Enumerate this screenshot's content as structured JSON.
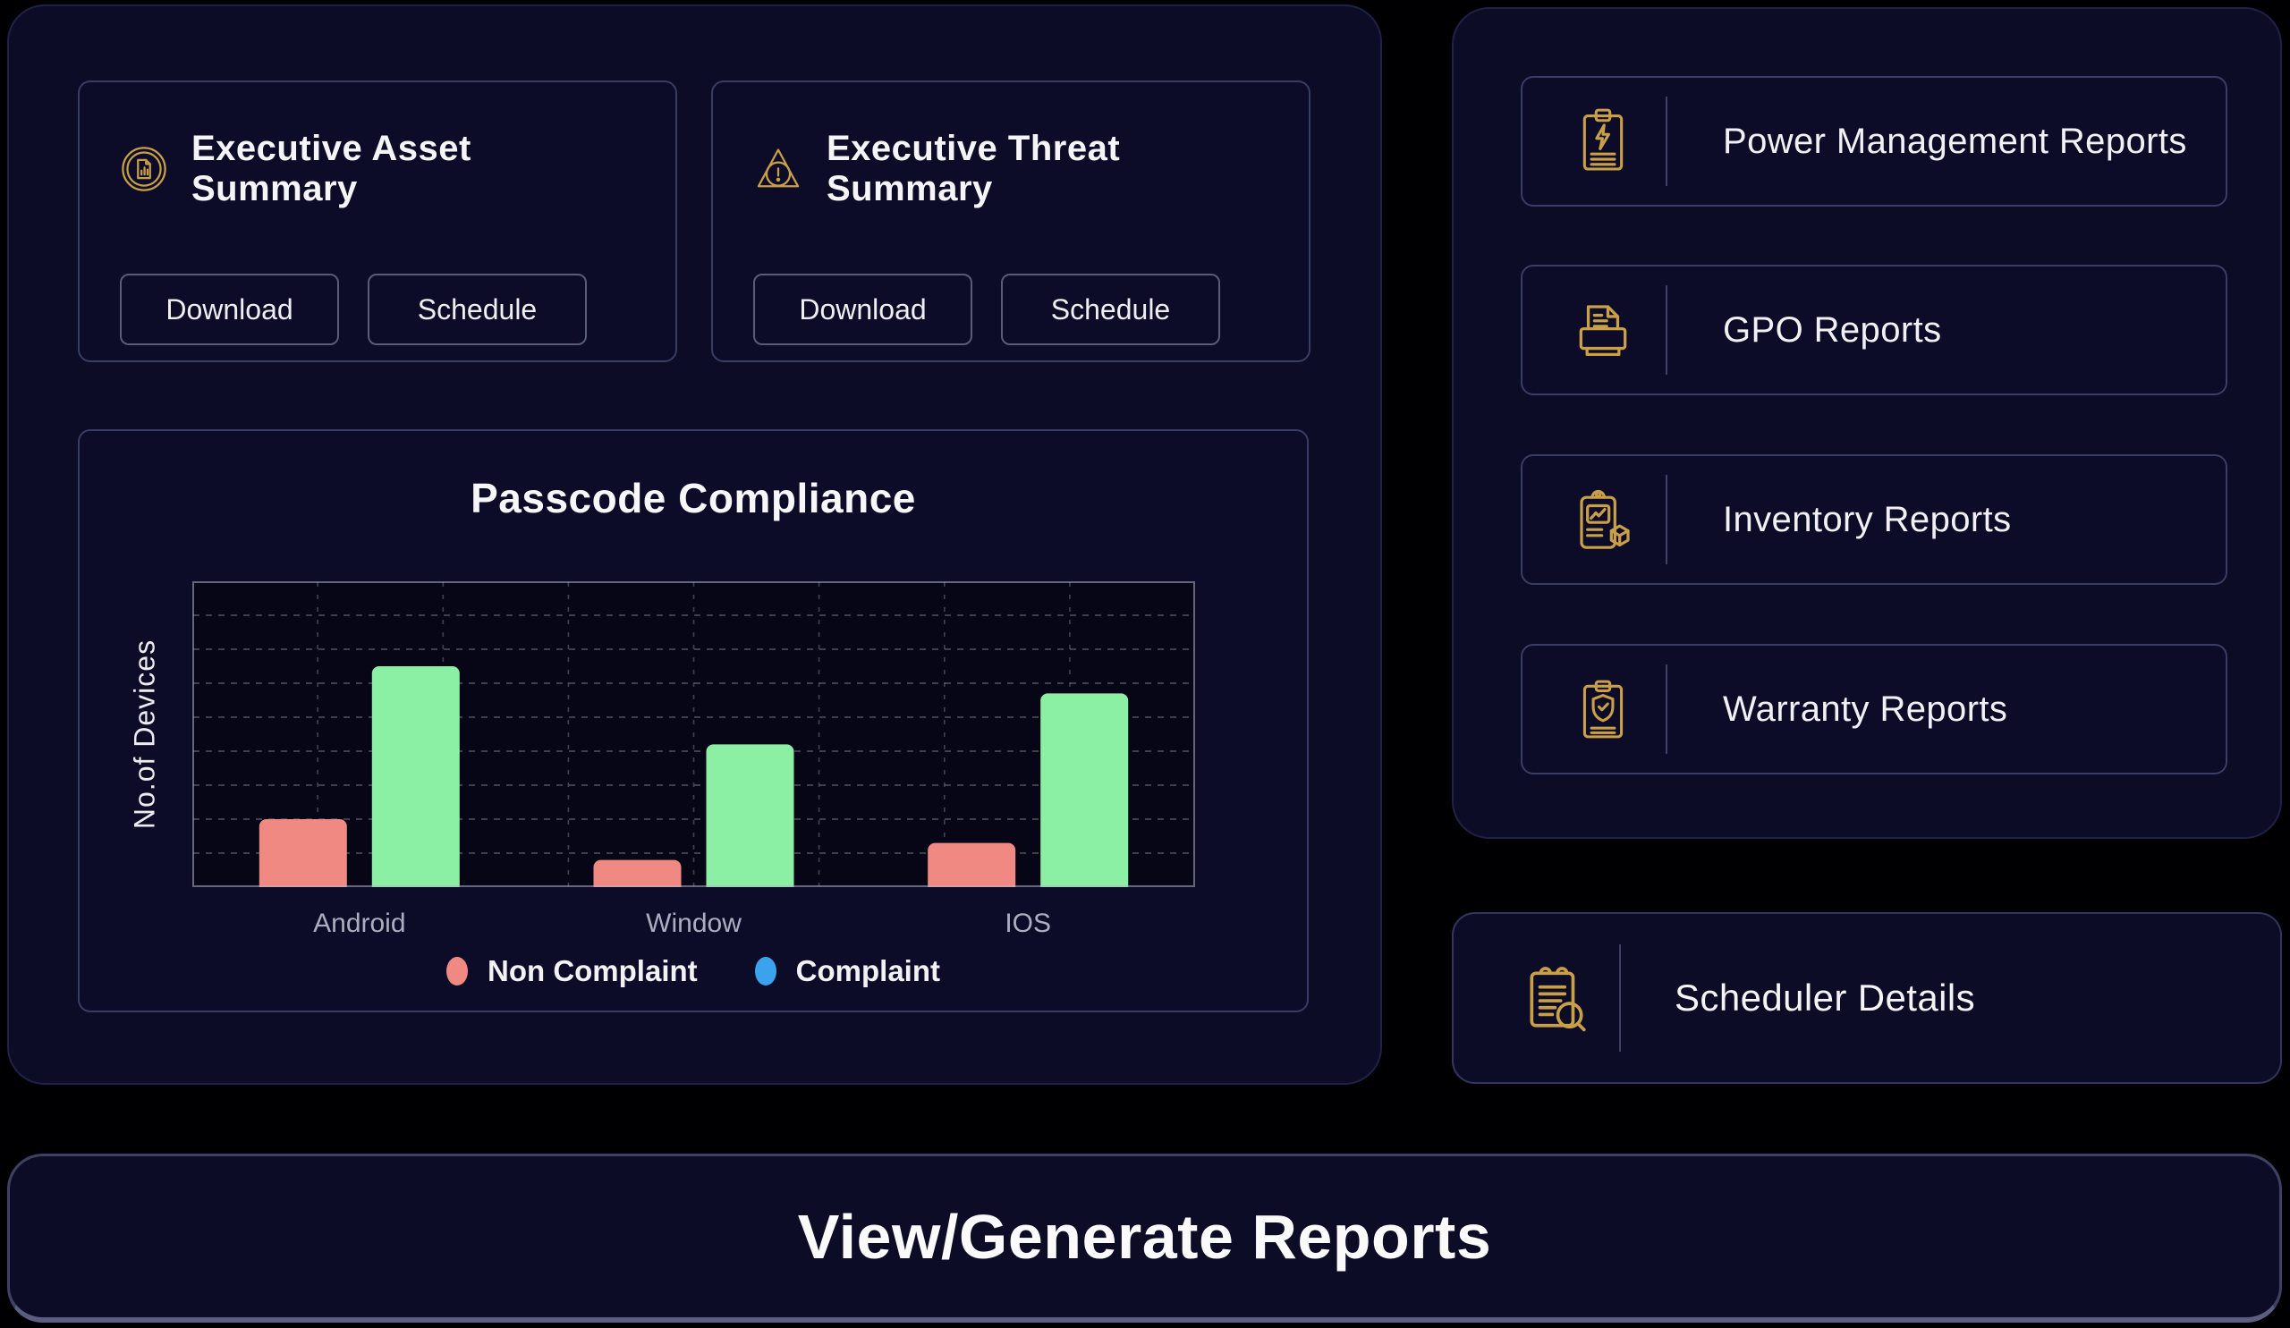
{
  "left_panel": {
    "asset_card": {
      "title": "Executive Asset Summary",
      "download_label": "Download",
      "schedule_label": "Schedule"
    },
    "threat_card": {
      "title": "Executive Threat Summary",
      "download_label": "Download",
      "schedule_label": "Schedule"
    }
  },
  "chart_card": {
    "title": "Passcode Compliance"
  },
  "chart_data": {
    "type": "bar",
    "title": "Passcode Compliance",
    "categories": [
      "Android",
      "Window",
      "IOS"
    ],
    "series": [
      {
        "name": "Non Complaint",
        "color": "#F18983",
        "values": [
          20,
          8,
          13
        ]
      },
      {
        "name": "Complaint",
        "color": "#8BF0A4",
        "values": [
          65,
          42,
          57
        ]
      }
    ],
    "legend_colors": [
      "#F18983",
      "#3BA3EE"
    ],
    "xlabel": "",
    "ylabel": "No.of Devices",
    "ylim": [
      0,
      90
    ],
    "grid": true,
    "grid_style": "dashed",
    "legend_position": "bottom"
  },
  "right_panel": {
    "items": [
      {
        "label": "Power Management Reports",
        "icon": "power-clipboard-icon"
      },
      {
        "label": "GPO Reports",
        "icon": "printer-document-icon"
      },
      {
        "label": "Inventory Reports",
        "icon": "inventory-clipboard-icon"
      },
      {
        "label": "Warranty Reports",
        "icon": "warranty-clipboard-icon"
      }
    ]
  },
  "scheduler_card": {
    "label": "Scheduler Details",
    "icon": "scheduler-notepad-icon"
  },
  "bottom_bar": {
    "title": "View/Generate Reports"
  },
  "colors": {
    "gold": "#C99F47",
    "page_bg": "#000002",
    "panel_bg": "#0C0C27",
    "card_border": "#3A3D63",
    "slate_border": "#5A5E80",
    "bar_non_compliant": "#F18983",
    "bar_compliant": "#8BF0A4",
    "legend_compliant_dot": "#3BA3EE"
  }
}
